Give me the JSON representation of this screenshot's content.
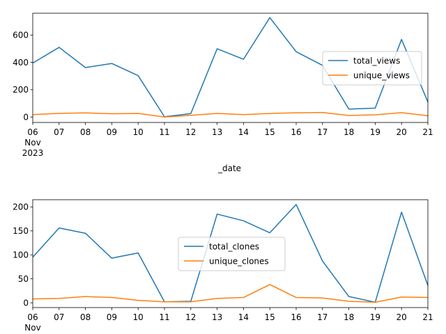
{
  "colors": {
    "series_1": "#1f77b4",
    "series_2": "#ff7f0e"
  },
  "chart_data": [
    {
      "type": "line",
      "x": [
        "06",
        "07",
        "08",
        "09",
        "10",
        "11",
        "12",
        "13",
        "14",
        "15",
        "16",
        "17",
        "18",
        "19",
        "20",
        "21"
      ],
      "x_sublabels": {
        "06": [
          "Nov",
          "2023"
        ]
      },
      "xlabel": "_date",
      "ylabel": "",
      "ylim": [
        -40,
        760
      ],
      "yticks": [
        0,
        200,
        400,
        600
      ],
      "grid": false,
      "legend": "center-right",
      "series": [
        {
          "name": "total_views",
          "values": [
            395,
            510,
            362,
            392,
            303,
            2,
            25,
            500,
            423,
            728,
            478,
            378,
            58,
            65,
            568,
            110
          ]
        },
        {
          "name": "unique_views",
          "values": [
            17,
            27,
            30,
            24,
            26,
            0,
            12,
            26,
            17,
            26,
            31,
            33,
            11,
            16,
            32,
            9
          ]
        }
      ]
    },
    {
      "type": "line",
      "x": [
        "06",
        "07",
        "08",
        "09",
        "10",
        "11",
        "12",
        "13",
        "14",
        "15",
        "16",
        "17",
        "18",
        "19",
        "20",
        "21"
      ],
      "x_sublabels": {
        "06": [
          "Nov"
        ]
      },
      "xlabel": "",
      "ylabel": "",
      "ylim": [
        -10,
        215
      ],
      "yticks": [
        0,
        50,
        100,
        150,
        200
      ],
      "grid": false,
      "legend": "center",
      "series": [
        {
          "name": "total_clones",
          "values": [
            95,
            156,
            145,
            93,
            104,
            2,
            3,
            185,
            171,
            146,
            205,
            87,
            13,
            1,
            189,
            36
          ]
        },
        {
          "name": "unique_clones",
          "values": [
            8,
            9,
            13,
            11,
            5,
            2,
            2,
            9,
            11,
            38,
            11,
            10,
            3,
            1,
            12,
            11
          ]
        }
      ]
    }
  ]
}
